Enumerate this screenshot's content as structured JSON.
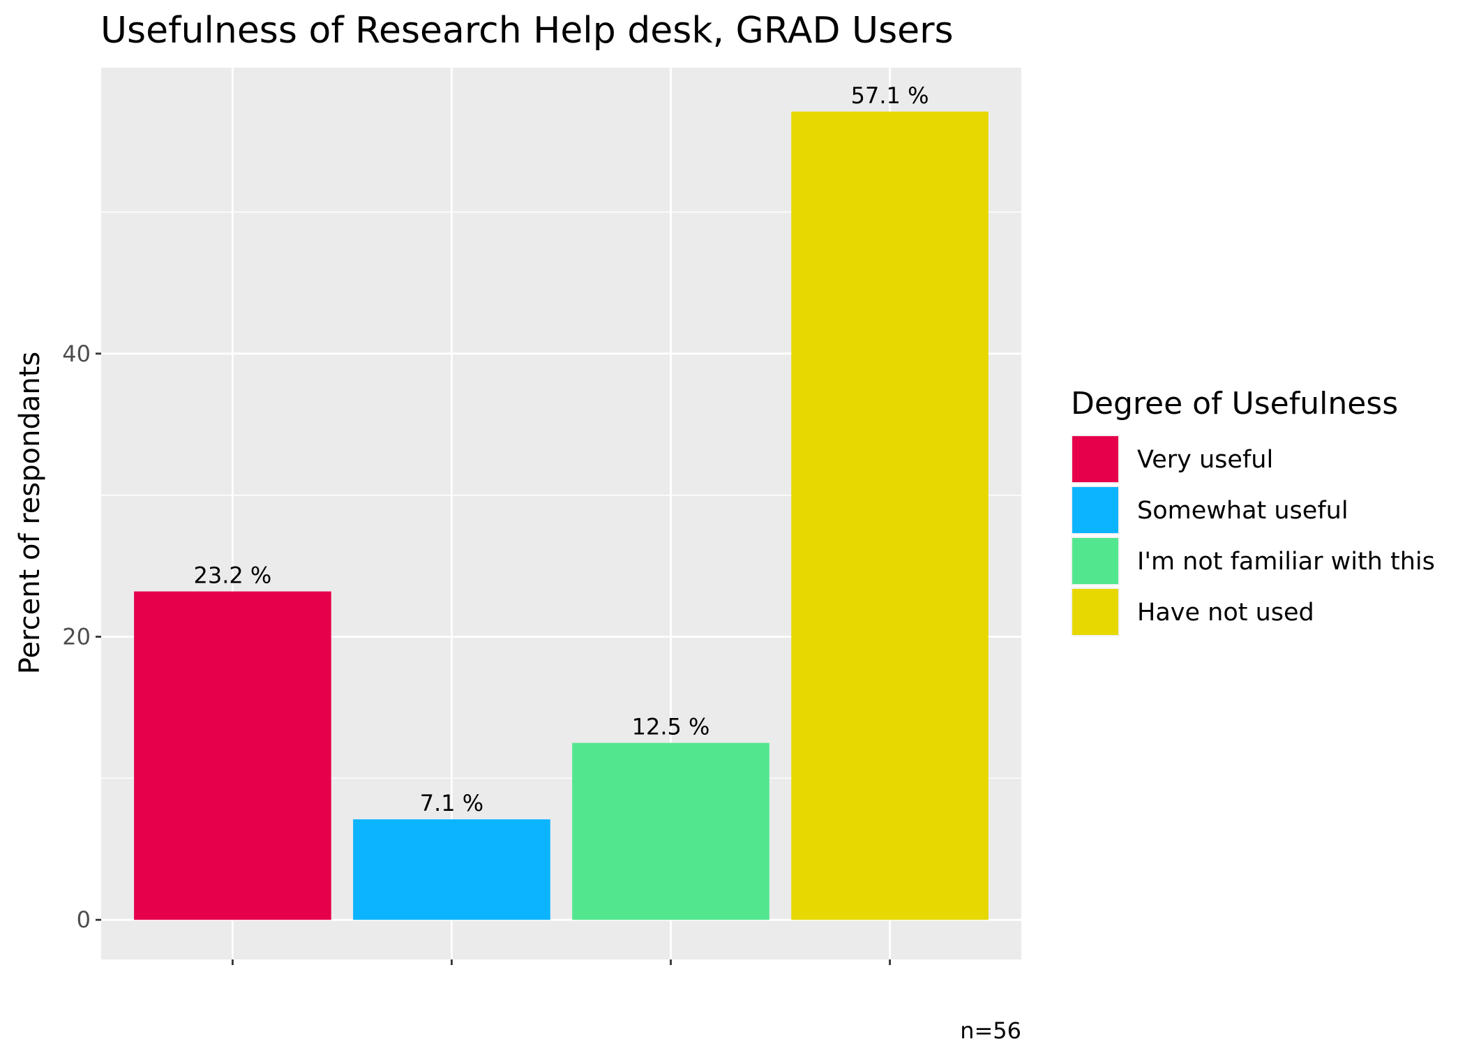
{
  "chart_data": {
    "type": "bar",
    "title": "Usefulness of Research Help desk,  GRAD Users",
    "xlabel": "",
    "ylabel": "Percent of respondants",
    "ylim": [
      -2.8,
      60.2
    ],
    "yticks": [
      0,
      20,
      40
    ],
    "grid": true,
    "categories": [
      "Very useful",
      "Somewhat useful",
      "I'm not familiar with this",
      "Have not used"
    ],
    "values": [
      23.2,
      7.1,
      12.5,
      57.1
    ],
    "value_labels": [
      "23.2 %",
      "7.1 %",
      "12.5 %",
      "57.1 %"
    ],
    "colors": [
      "#E6004C",
      "#0CB4FF",
      "#52E78F",
      "#E6D800"
    ],
    "legend": {
      "title": "Degree of Usefulness",
      "placement": "right"
    },
    "caption": "n=56",
    "panel_color": "#EBEBEB",
    "grid_color": "#FFFFFF"
  }
}
